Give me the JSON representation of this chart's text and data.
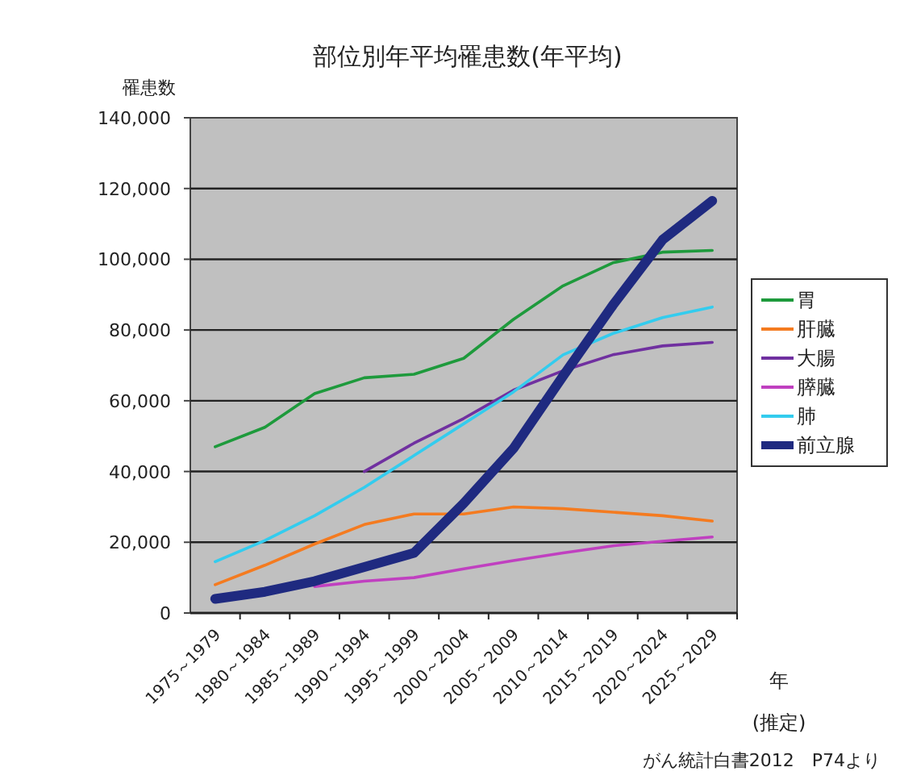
{
  "chart_data": {
    "type": "line",
    "title": "部位別年平均罹患数(年平均)",
    "ylabel": "罹患数",
    "xlabel": "年",
    "annotations": [
      "(推定)",
      "がん統計白書2012　P74より"
    ],
    "categories": [
      "1975～1979",
      "1980～1984",
      "1985～1989",
      "1990～1994",
      "1995～1999",
      "2000～2004",
      "2005～2009",
      "2010～2014",
      "2015～2019",
      "2020～2024",
      "2025～2029"
    ],
    "ylim": [
      0,
      140000
    ],
    "yticks": [
      {
        "value": 0,
        "label": "0"
      },
      {
        "value": 20000,
        "label": "20,000"
      },
      {
        "value": 40000,
        "label": "40,000"
      },
      {
        "value": 60000,
        "label": "60,000"
      },
      {
        "value": 80000,
        "label": "80,000"
      },
      {
        "value": 100000,
        "label": "100,000"
      },
      {
        "value": 120000,
        "label": "120,000"
      },
      {
        "value": 140000,
        "label": "140,000"
      }
    ],
    "grid": "y",
    "legend": "right",
    "series": [
      {
        "name": "胃",
        "color": "#1e9a3c",
        "values": [
          47000,
          52500,
          62000,
          66500,
          67500,
          72000,
          83000,
          92500,
          99000,
          102000,
          102500
        ]
      },
      {
        "name": "肝臓",
        "color": "#f47b20",
        "values": [
          8000,
          13500,
          19500,
          25000,
          28000,
          28000,
          30000,
          29500,
          28500,
          27500,
          26000
        ]
      },
      {
        "name": "大腸",
        "color": "#7030a0",
        "values": [
          null,
          null,
          null,
          40000,
          48000,
          55000,
          63000,
          68500,
          73000,
          75500,
          76500
        ]
      },
      {
        "name": "膵臓",
        "color": "#c040c0",
        "values": [
          null,
          null,
          7500,
          9000,
          10000,
          12500,
          14800,
          17000,
          19000,
          20300,
          21500
        ]
      },
      {
        "name": "肺",
        "color": "#33ccee",
        "values": [
          14500,
          20500,
          27500,
          35500,
          44500,
          53500,
          62500,
          73000,
          79000,
          83500,
          86500
        ]
      },
      {
        "name": "前立腺",
        "color": "#1f2a80",
        "values": [
          4000,
          6000,
          9000,
          13000,
          17000,
          31000,
          46500,
          67000,
          87000,
          105500,
          116500
        ]
      }
    ]
  }
}
